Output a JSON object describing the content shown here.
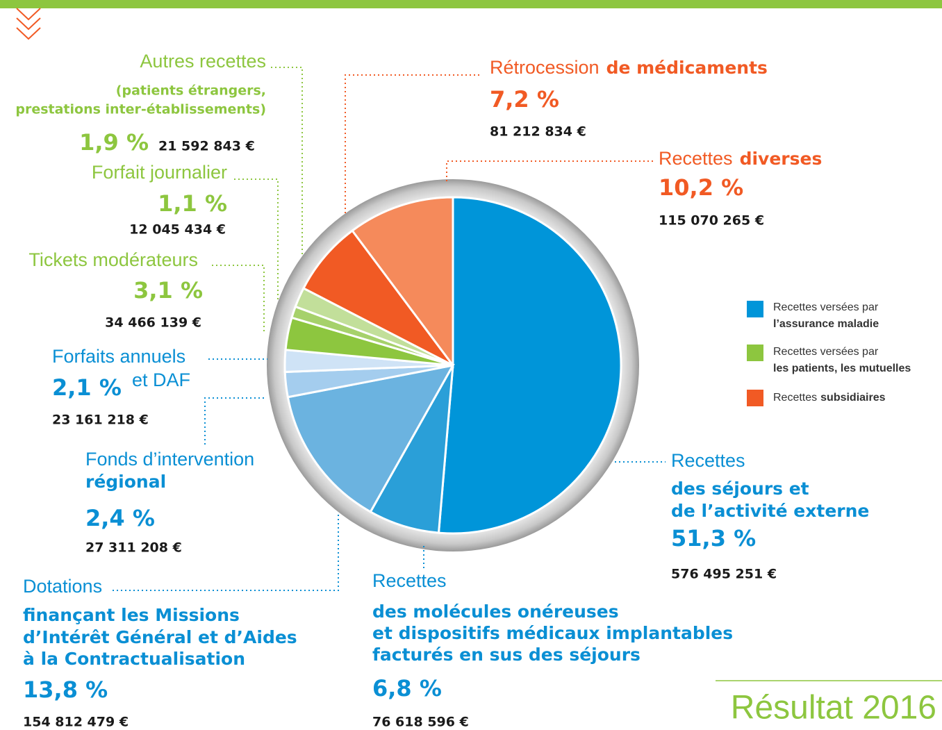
{
  "chart_data": {
    "type": "pie",
    "title": "Résultat 2016",
    "categories": [
      [
        "Recettes",
        "des séjours et",
        "de l’activité externe"
      ],
      [
        "Recettes",
        "des molécules onéreuses",
        "et dispositifs médicaux implantables",
        "facturés en sus des séjours"
      ],
      [
        "Dotations",
        "finançant les Missions",
        "d’Intérêt Général et d’Aides",
        "à la Contractualisation"
      ],
      [
        "Fonds d’intervention",
        "régional"
      ],
      [
        "Forfaits annuels",
        "et DAF"
      ],
      [
        "Tickets modérateurs"
      ],
      [
        "Forfait journalier"
      ],
      [
        "Autres recettes",
        "(patients étrangers,",
        "prestations inter-établissements)"
      ],
      [
        "Rétrocession",
        "de médicaments"
      ],
      [
        "Recettes",
        "diverses"
      ]
    ],
    "values": [
      51.3,
      6.8,
      13.8,
      2.4,
      2.1,
      3.1,
      1.1,
      1.9,
      7.2,
      10.2
    ],
    "value_labels": [
      "51,3 %",
      "6,8 %",
      "13,8 %",
      "2,4 %",
      "2,1 %",
      "3,1 %",
      "1,1 %",
      "1,9 %",
      "7,2 %",
      "10,2 %"
    ],
    "amounts": [
      "576 495 251 €",
      "76 618 596 €",
      "154 812 479 €",
      "27 311 208 €",
      "23 161 218 €",
      "34 466 139 €",
      "12 045 434 €",
      "21 592 843 €",
      "81 212 834 €",
      "115 070 265 €"
    ],
    "colors": [
      "#0095d9",
      "#2a9fd8",
      "#6bb3e0",
      "#a4cdee",
      "#cfe3f6",
      "#8dc63f",
      "#a6d16b",
      "#c2df9a",
      "#f15a24",
      "#f58a5b"
    ],
    "legend": [
      {
        "name": [
          "Recettes versées par",
          "l’assurance maladie"
        ],
        "color": "#0095d9"
      },
      {
        "name": [
          "Recettes versées par",
          "les patients, les mutuelles"
        ],
        "color": "#8dc63f"
      },
      {
        "name": [
          "Recettes",
          "subsidiaires"
        ],
        "color": "#f15a24"
      }
    ]
  }
}
